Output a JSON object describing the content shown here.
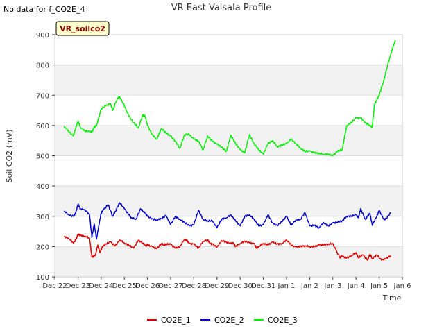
{
  "header": {
    "no_data_note": "No data for f_CO2E_4",
    "site_label": "VR_soilco2"
  },
  "chart_data": {
    "type": "line",
    "title": "VR East Vaisala Profile",
    "xlabel": "Time",
    "ylabel": "Soil CO2 (mV)",
    "xlim": [
      0,
      15
    ],
    "ylim": [
      100,
      900
    ],
    "x_ticks": [
      {
        "x": 0,
        "label": "Dec 22"
      },
      {
        "x": 1,
        "label": "Dec 23"
      },
      {
        "x": 2,
        "label": "Dec 24"
      },
      {
        "x": 3,
        "label": "Dec 25"
      },
      {
        "x": 4,
        "label": "Dec 26"
      },
      {
        "x": 5,
        "label": "Dec 27"
      },
      {
        "x": 6,
        "label": "Dec 28"
      },
      {
        "x": 7,
        "label": "Dec 29"
      },
      {
        "x": 8,
        "label": "Dec 30"
      },
      {
        "x": 9,
        "label": "Dec 31"
      },
      {
        "x": 10,
        "label": "Jan 1"
      },
      {
        "x": 11,
        "label": "Jan 2"
      },
      {
        "x": 12,
        "label": "Jan 3"
      },
      {
        "x": 13,
        "label": "Jan 4"
      },
      {
        "x": 14,
        "label": "Jan 5"
      },
      {
        "x": 15,
        "label": "Jan 6"
      }
    ],
    "y_ticks": [
      100,
      200,
      300,
      400,
      500,
      600,
      700,
      800,
      900
    ],
    "grid": true,
    "legend_position": "bottom",
    "series": [
      {
        "name": "CO2E_1",
        "color": "#dd0000",
        "x": [
          0.4,
          0.6,
          0.8,
          0.9,
          1.0,
          1.1,
          1.3,
          1.5,
          1.6,
          1.75,
          1.85,
          1.95,
          2.05,
          2.2,
          2.4,
          2.6,
          2.8,
          3.0,
          3.2,
          3.4,
          3.6,
          3.8,
          3.9,
          4.0,
          4.2,
          4.4,
          4.6,
          4.7,
          4.8,
          5.0,
          5.2,
          5.4,
          5.6,
          5.7,
          5.8,
          6.0,
          6.2,
          6.4,
          6.6,
          6.7,
          6.8,
          7.0,
          7.2,
          7.4,
          7.6,
          7.7,
          7.8,
          8.0,
          8.2,
          8.4,
          8.6,
          8.7,
          8.8,
          9.0,
          9.2,
          9.4,
          9.6,
          9.8,
          10.0,
          10.2,
          10.4,
          10.6,
          10.8,
          11.0,
          11.2,
          11.4,
          11.6,
          11.8,
          12.0,
          12.3,
          12.4,
          12.6,
          12.8,
          13.0,
          13.1,
          13.3,
          13.5,
          13.6,
          13.7,
          13.9,
          14.1,
          14.3,
          14.5
        ],
        "y": [
          233,
          228,
          212,
          222,
          240,
          237,
          235,
          228,
          165,
          170,
          205,
          180,
          200,
          208,
          215,
          202,
          222,
          212,
          204,
          195,
          220,
          212,
          205,
          205,
          200,
          193,
          210,
          205,
          208,
          207,
          195,
          200,
          225,
          220,
          210,
          208,
          195,
          218,
          222,
          210,
          208,
          198,
          220,
          215,
          210,
          212,
          200,
          210,
          218,
          212,
          210,
          195,
          200,
          210,
          205,
          215,
          208,
          210,
          222,
          205,
          198,
          200,
          203,
          200,
          200,
          205,
          205,
          208,
          210,
          163,
          168,
          162,
          170,
          180,
          163,
          172,
          155,
          175,
          160,
          172,
          155,
          160,
          170
        ]
      },
      {
        "name": "CO2E_2",
        "color": "#0000cc",
        "x": [
          0.4,
          0.6,
          0.8,
          0.9,
          1.0,
          1.1,
          1.3,
          1.5,
          1.6,
          1.7,
          1.8,
          1.9,
          2.0,
          2.1,
          2.3,
          2.5,
          2.6,
          2.8,
          3.0,
          3.2,
          3.3,
          3.5,
          3.7,
          3.9,
          4.0,
          4.2,
          4.4,
          4.6,
          4.8,
          5.0,
          5.2,
          5.4,
          5.6,
          5.8,
          6.0,
          6.2,
          6.4,
          6.6,
          6.8,
          7.0,
          7.2,
          7.4,
          7.6,
          7.8,
          8.0,
          8.2,
          8.4,
          8.6,
          8.8,
          9.0,
          9.2,
          9.4,
          9.6,
          9.8,
          10.0,
          10.2,
          10.4,
          10.6,
          10.8,
          11.0,
          11.2,
          11.4,
          11.6,
          11.8,
          12.0,
          12.2,
          12.4,
          12.6,
          12.8,
          13.0,
          13.1,
          13.2,
          13.4,
          13.6,
          13.7,
          13.9,
          14.0,
          14.2,
          14.3,
          14.5
        ],
        "y": [
          318,
          305,
          300,
          310,
          340,
          325,
          322,
          305,
          230,
          275,
          225,
          270,
          310,
          322,
          338,
          300,
          315,
          345,
          325,
          305,
          295,
          290,
          325,
          310,
          300,
          292,
          288,
          292,
          302,
          272,
          300,
          290,
          280,
          268,
          272,
          320,
          290,
          285,
          285,
          262,
          290,
          295,
          305,
          285,
          268,
          300,
          305,
          290,
          268,
          272,
          305,
          278,
          270,
          282,
          300,
          270,
          288,
          290,
          312,
          268,
          270,
          262,
          280,
          268,
          278,
          280,
          285,
          300,
          300,
          305,
          295,
          325,
          290,
          310,
          270,
          300,
          320,
          290,
          292,
          312
        ]
      },
      {
        "name": "CO2E_3",
        "color": "#00ee00",
        "x": [
          0.4,
          0.6,
          0.8,
          0.9,
          1.0,
          1.1,
          1.3,
          1.5,
          1.6,
          1.7,
          1.8,
          2.0,
          2.2,
          2.4,
          2.5,
          2.7,
          2.8,
          3.0,
          3.2,
          3.4,
          3.6,
          3.8,
          3.9,
          4.0,
          4.2,
          4.4,
          4.6,
          4.8,
          5.0,
          5.2,
          5.4,
          5.6,
          5.8,
          6.0,
          6.2,
          6.4,
          6.6,
          6.8,
          7.0,
          7.2,
          7.4,
          7.6,
          7.8,
          8.0,
          8.2,
          8.4,
          8.6,
          8.8,
          9.0,
          9.2,
          9.4,
          9.6,
          9.8,
          10.0,
          10.2,
          10.4,
          10.6,
          10.8,
          11.0,
          11.2,
          11.4,
          11.6,
          11.8,
          12.0,
          12.2,
          12.4,
          12.6,
          12.8,
          13.0,
          13.2,
          13.4,
          13.6,
          13.7,
          13.8,
          13.9,
          14.0,
          14.2,
          14.4,
          14.6,
          14.7
        ],
        "y": [
          598,
          580,
          565,
          590,
          615,
          595,
          582,
          580,
          578,
          595,
          600,
          655,
          665,
          672,
          650,
          690,
          695,
          665,
          630,
          610,
          592,
          635,
          630,
          600,
          570,
          555,
          590,
          575,
          565,
          548,
          525,
          570,
          570,
          555,
          548,
          520,
          565,
          548,
          538,
          528,
          515,
          568,
          540,
          520,
          510,
          570,
          540,
          520,
          505,
          540,
          550,
          530,
          535,
          540,
          555,
          540,
          525,
          515,
          515,
          510,
          508,
          505,
          505,
          500,
          515,
          520,
          600,
          610,
          625,
          625,
          610,
          600,
          595,
          670,
          685,
          700,
          750,
          810,
          860,
          882
        ]
      }
    ]
  }
}
